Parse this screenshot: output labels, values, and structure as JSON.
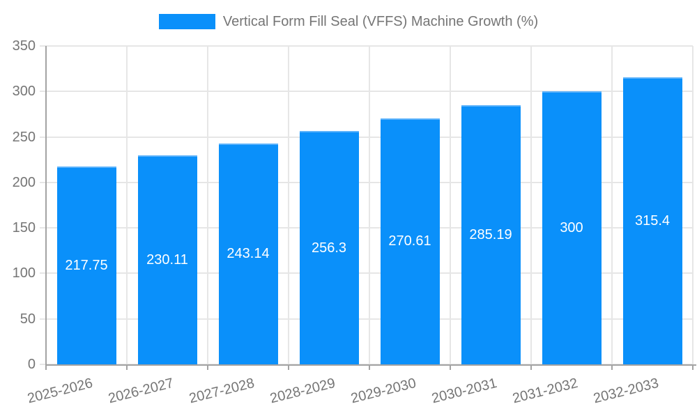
{
  "chart_data": {
    "type": "bar",
    "title": "Vertical Form Fill Seal (VFFS) Machine Growth (%)",
    "categories": [
      "2025-2026",
      "2026-2027",
      "2027-2028",
      "2028-2029",
      "2029-2030",
      "2030-2031",
      "2031-2032",
      "2032-2033"
    ],
    "values": [
      217.75,
      230.11,
      243.14,
      256.3,
      270.61,
      285.19,
      300,
      315.4
    ],
    "value_labels": [
      "217.75",
      "230.11",
      "243.14",
      "256.3",
      "270.61",
      "285.19",
      "300",
      "315.4"
    ],
    "ytick_labels": [
      "0",
      "50",
      "100",
      "150",
      "200",
      "250",
      "300",
      "350"
    ],
    "yticks": [
      0,
      50,
      100,
      150,
      200,
      250,
      300,
      350
    ],
    "ylim": [
      0,
      350
    ],
    "xlabel": "",
    "ylabel": "",
    "grid": true,
    "legend_position": "top",
    "colors": {
      "bar": "#0a90fa",
      "bar_top_border": "#5db3fb",
      "value_label": "#ffffff",
      "tick_text": "#757575",
      "grid_line": "#e6e6e6",
      "axis_line": "#a3a3a3",
      "background": "#ffffff"
    }
  }
}
